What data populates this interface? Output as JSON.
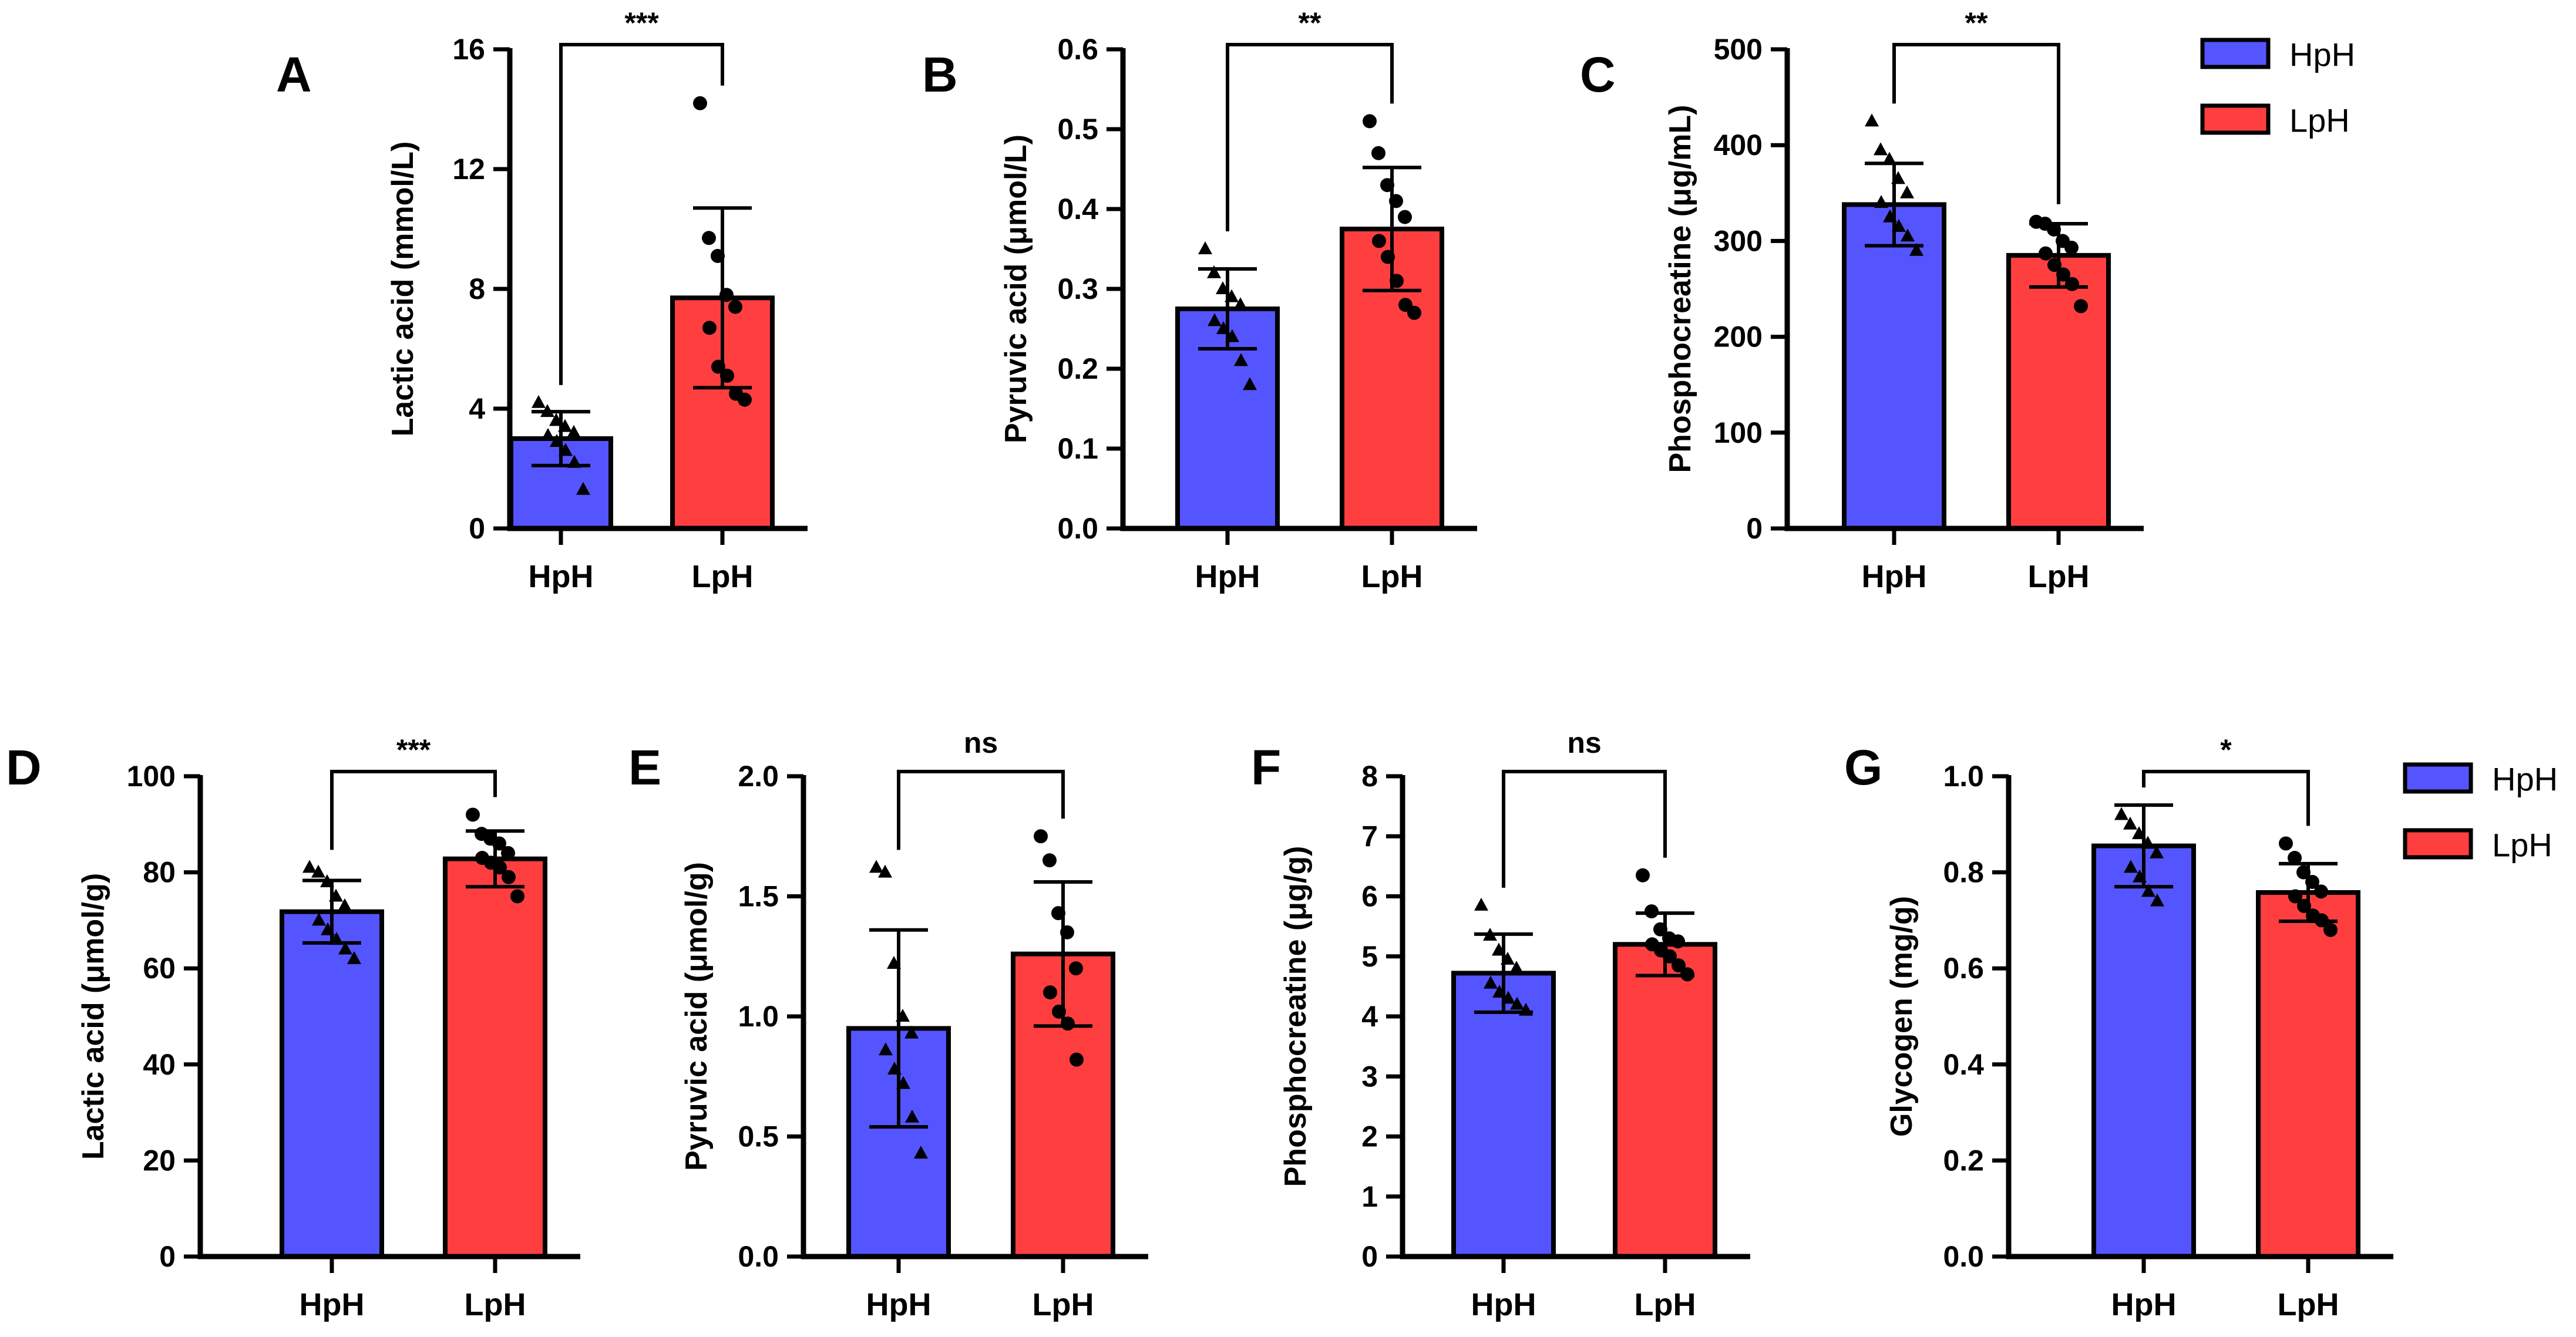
{
  "colors": {
    "HpH": "#5555ff",
    "LpH": "#ff3f3f",
    "stroke": "#000000"
  },
  "legends": [
    {
      "entries": [
        {
          "label": "HpH",
          "color": "#5555ff"
        },
        {
          "label": "LpH",
          "color": "#ff3f3f"
        }
      ]
    },
    {
      "entries": [
        {
          "label": "HpH",
          "color": "#5555ff"
        },
        {
          "label": "LpH",
          "color": "#ff3f3f"
        }
      ]
    }
  ],
  "chart_data": [
    {
      "panel": "A",
      "type": "bar",
      "categories": [
        "HpH",
        "LpH"
      ],
      "ylabel": "Lactic acid (mmol/L)",
      "ylim": [
        0,
        16
      ],
      "yticks": [
        0,
        4,
        8,
        12,
        16
      ],
      "ytick_labels": [
        "0",
        "4",
        "8",
        "12",
        "16"
      ],
      "series": [
        {
          "name": "HpH",
          "mean": 3.0,
          "sd": 0.9,
          "marker": "triangle",
          "points": [
            4.2,
            3.9,
            3.6,
            3.4,
            3.2,
            3.1,
            2.9,
            2.6,
            2.2,
            1.3
          ]
        },
        {
          "name": "LpH",
          "mean": 7.7,
          "sd": 3.0,
          "marker": "circle",
          "points": [
            14.2,
            9.7,
            9.1,
            7.8,
            7.4,
            6.7,
            5.4,
            5.1,
            4.5,
            4.3
          ]
        }
      ],
      "significance": "***"
    },
    {
      "panel": "B",
      "type": "bar",
      "categories": [
        "HpH",
        "LpH"
      ],
      "ylabel": "Pyruvic acid (μmol/L)",
      "ylim": [
        0,
        0.6
      ],
      "yticks": [
        0,
        0.1,
        0.2,
        0.3,
        0.4,
        0.5,
        0.6
      ],
      "ytick_labels": [
        "0.0",
        "0.1",
        "0.2",
        "0.3",
        "0.4",
        "0.5",
        "0.6"
      ],
      "series": [
        {
          "name": "HpH",
          "mean": 0.275,
          "sd": 0.05,
          "marker": "triangle",
          "points": [
            0.35,
            0.32,
            0.3,
            0.29,
            0.28,
            0.26,
            0.25,
            0.24,
            0.21,
            0.18
          ]
        },
        {
          "name": "LpH",
          "mean": 0.375,
          "sd": 0.077,
          "marker": "circle",
          "points": [
            0.51,
            0.47,
            0.43,
            0.41,
            0.39,
            0.36,
            0.34,
            0.31,
            0.28,
            0.27
          ]
        }
      ],
      "significance": "**"
    },
    {
      "panel": "C",
      "type": "bar",
      "categories": [
        "HpH",
        "LpH"
      ],
      "ylabel": "Phosphocreatine (μg/mL)",
      "ylim": [
        0,
        500
      ],
      "yticks": [
        0,
        100,
        200,
        300,
        400,
        500
      ],
      "ytick_labels": [
        "0",
        "100",
        "200",
        "300",
        "400",
        "500"
      ],
      "series": [
        {
          "name": "HpH",
          "mean": 338,
          "sd": 43,
          "marker": "triangle",
          "points": [
            425,
            395,
            385,
            365,
            350,
            340,
            325,
            315,
            305,
            290
          ]
        },
        {
          "name": "LpH",
          "mean": 285,
          "sd": 33,
          "marker": "circle",
          "points": [
            320,
            318,
            312,
            300,
            293,
            287,
            275,
            265,
            255,
            232
          ]
        }
      ],
      "significance": "**"
    },
    {
      "panel": "D",
      "type": "bar",
      "categories": [
        "HpH",
        "LpH"
      ],
      "ylabel": "Lactic acid (μmol/g)",
      "ylim": [
        0,
        100
      ],
      "yticks": [
        0,
        20,
        40,
        60,
        80,
        100
      ],
      "ytick_labels": [
        "0",
        "20",
        "40",
        "60",
        "80",
        "100"
      ],
      "series": [
        {
          "name": "HpH",
          "mean": 71.8,
          "sd": 6.5,
          "marker": "triangle",
          "points": [
            81,
            80,
            78,
            75,
            73,
            70,
            68,
            66,
            64,
            62
          ]
        },
        {
          "name": "LpH",
          "mean": 82.8,
          "sd": 5.8,
          "marker": "circle",
          "points": [
            92,
            88,
            87,
            86,
            84,
            83,
            82,
            81,
            79,
            75
          ]
        }
      ],
      "significance": "***"
    },
    {
      "panel": "E",
      "type": "bar",
      "categories": [
        "HpH",
        "LpH"
      ],
      "ylabel": "Pyruvic acid (μmol/g)",
      "ylim": [
        0,
        2.0
      ],
      "yticks": [
        0,
        0.5,
        1.0,
        1.5,
        2.0
      ],
      "ytick_labels": [
        "0.0",
        "0.5",
        "1.0",
        "1.5",
        "2.0"
      ],
      "series": [
        {
          "name": "HpH",
          "mean": 0.95,
          "sd": 0.41,
          "marker": "triangle",
          "points": [
            1.62,
            1.6,
            1.22,
            1.0,
            0.93,
            0.86,
            0.78,
            0.72,
            0.58,
            0.43
          ]
        },
        {
          "name": "LpH",
          "mean": 1.26,
          "sd": 0.3,
          "marker": "circle",
          "points": [
            1.75,
            1.65,
            1.43,
            1.35,
            1.2,
            1.1,
            1.02,
            0.97,
            0.82
          ]
        }
      ],
      "significance": "ns"
    },
    {
      "panel": "F",
      "type": "bar",
      "categories": [
        "HpH",
        "LpH"
      ],
      "ylabel": "Phosphocreatine (μg/g)",
      "ylim": [
        0,
        8
      ],
      "yticks": [
        0,
        1,
        2,
        3,
        4,
        5,
        6,
        7,
        8
      ],
      "ytick_labels": [
        "0",
        "1",
        "2",
        "3",
        "4",
        "5",
        "6",
        "7",
        "8"
      ],
      "series": [
        {
          "name": "HpH",
          "mean": 4.72,
          "sd": 0.65,
          "marker": "triangle",
          "points": [
            5.85,
            5.35,
            5.1,
            4.95,
            4.8,
            4.55,
            4.4,
            4.3,
            4.2,
            4.1
          ]
        },
        {
          "name": "LpH",
          "mean": 5.2,
          "sd": 0.52,
          "marker": "circle",
          "points": [
            6.35,
            5.75,
            5.45,
            5.3,
            5.25,
            5.2,
            5.1,
            5.0,
            4.85,
            4.7
          ]
        }
      ],
      "significance": "ns"
    },
    {
      "panel": "G",
      "type": "bar",
      "categories": [
        "HpH",
        "LpH"
      ],
      "ylabel": "Glycogen (mg/g)",
      "ylim": [
        0,
        1.0
      ],
      "yticks": [
        0,
        0.2,
        0.4,
        0.6,
        0.8,
        1.0
      ],
      "ytick_labels": [
        "0.0",
        "0.2",
        "0.4",
        "0.6",
        "0.8",
        "1.0"
      ],
      "series": [
        {
          "name": "HpH",
          "mean": 0.855,
          "sd": 0.085,
          "marker": "triangle",
          "points": [
            0.92,
            0.9,
            0.88,
            0.86,
            0.84,
            0.81,
            0.79,
            0.76,
            0.74
          ]
        },
        {
          "name": "LpH",
          "mean": 0.758,
          "sd": 0.06,
          "marker": "circle",
          "points": [
            0.86,
            0.83,
            0.8,
            0.78,
            0.76,
            0.75,
            0.73,
            0.71,
            0.7,
            0.68
          ]
        }
      ],
      "significance": "*"
    }
  ]
}
